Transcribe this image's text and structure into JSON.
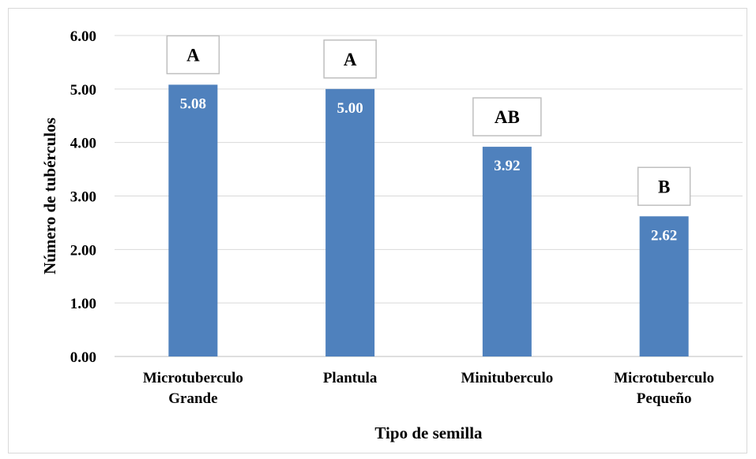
{
  "chart_data": {
    "type": "bar",
    "categories": [
      [
        "Microtuberculo",
        "Grande"
      ],
      [
        "Plantula"
      ],
      [
        "Minituberculo"
      ],
      [
        "Microtuberculo",
        "Pequeño"
      ]
    ],
    "values": [
      5.08,
      5.0,
      3.92,
      2.62
    ],
    "value_labels": [
      "5.08",
      "5.00",
      "3.92",
      "2.62"
    ],
    "group_letters": [
      "A",
      "A",
      "AB",
      "B"
    ],
    "xlabel": "Tipo de semilla",
    "ylabel": "Número de tubérculos",
    "ylim": [
      0,
      6
    ],
    "yticks": [
      "0.00",
      "1.00",
      "2.00",
      "3.00",
      "4.00",
      "5.00",
      "6.00"
    ],
    "grid": true,
    "legend": "none",
    "bar_color": "#4f81bd"
  }
}
